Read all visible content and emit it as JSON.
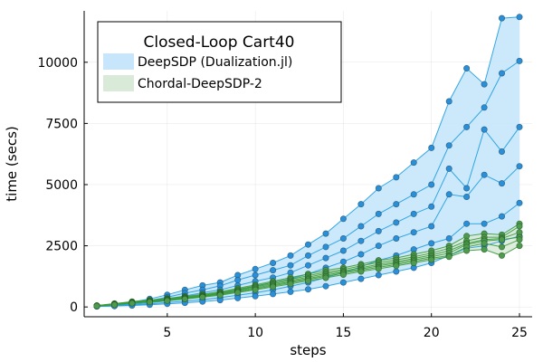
{
  "chart_data": {
    "type": "line",
    "title": "",
    "xlabel": "steps",
    "ylabel": "time (secs)",
    "xlim": [
      0.28,
      25.72
    ],
    "ylim": [
      -400,
      12100
    ],
    "xticks": [
      5,
      10,
      15,
      20,
      25
    ],
    "yticks": [
      0,
      2500,
      5000,
      7500,
      10000
    ],
    "ytick_labels": [
      "0",
      "2500",
      "5000",
      "7500",
      "10000"
    ],
    "grid": true,
    "legend": {
      "title": "Closed-Loop Cart40",
      "position": "top-left",
      "entries": [
        "DeepSDP (Dualization.jl)",
        "Chordal-DeepSDP-2"
      ]
    },
    "colors": {
      "deepsdp_line": "#1f9ee0",
      "deepsdp_fill": "#c7e6fb",
      "deepsdp_marker": "#2a8fd6",
      "chordal_line": "#3a9a3a",
      "chordal_fill": "#d9ead9",
      "chordal_marker": "#4f9a4f"
    },
    "x": [
      1,
      2,
      3,
      4,
      5,
      6,
      7,
      8,
      9,
      10,
      11,
      12,
      13,
      14,
      15,
      16,
      17,
      18,
      19,
      20,
      21,
      22,
      23,
      24,
      25
    ],
    "series_groups": [
      {
        "name": "DeepSDP (Dualization.jl)",
        "band": true,
        "series": [
          {
            "values": [
              50,
              120,
              200,
              330,
              500,
              700,
              880,
              1000,
              1300,
              1550,
              1800,
              2100,
              2550,
              3000,
              3600,
              4200,
              4850,
              5300,
              5900,
              6500,
              8400,
              9750,
              9100,
              11800,
              11850
            ]
          },
          {
            "values": [
              45,
              100,
              170,
              260,
              400,
              560,
              700,
              860,
              1100,
              1300,
              1500,
              1700,
              2100,
              2450,
              2800,
              3300,
              3800,
              4200,
              4600,
              5000,
              6600,
              7350,
              8150,
              9550,
              10050
            ]
          },
          {
            "values": [
              40,
              80,
              140,
              220,
              330,
              450,
              580,
              700,
              880,
              1050,
              1200,
              1400,
              1700,
              2000,
              2300,
              2700,
              3100,
              3450,
              3800,
              4100,
              5650,
              4850,
              7250,
              6350,
              7350
            ]
          },
          {
            "values": [
              35,
              60,
              110,
              170,
              250,
              350,
              450,
              550,
              700,
              850,
              1000,
              1150,
              1350,
              1600,
              1850,
              2150,
              2500,
              2800,
              3050,
              3300,
              4600,
              4500,
              5400,
              5050,
              5750
            ]
          },
          {
            "values": [
              25,
              45,
              80,
              120,
              180,
              240,
              300,
              380,
              480,
              580,
              700,
              850,
              1000,
              1200,
              1400,
              1650,
              1900,
              2100,
              2350,
              2600,
              2800,
              3400,
              3400,
              3700,
              4250
            ]
          },
          {
            "values": [
              20,
              35,
              60,
              90,
              130,
              170,
              220,
              280,
              360,
              440,
              530,
              620,
              720,
              850,
              1000,
              1150,
              1300,
              1450,
              1600,
              1800,
              2100,
              2400,
              2500,
              2700,
              2900
            ]
          }
        ]
      },
      {
        "name": "Chordal-DeepSDP-2",
        "band": true,
        "series": [
          {
            "values": [
              60,
              140,
              220,
              280,
              350,
              430,
              520,
              620,
              760,
              900,
              1050,
              1200,
              1350,
              1500,
              1600,
              1750,
              1900,
              2000,
              2150,
              2300,
              2500,
              2900,
              3000,
              2950,
              3400
            ]
          },
          {
            "values": [
              55,
              130,
              200,
              260,
              330,
              400,
              490,
              590,
              720,
              860,
              1000,
              1130,
              1280,
              1420,
              1530,
              1680,
              1820,
              1920,
              2050,
              2200,
              2400,
              2700,
              2850,
              2850,
              3300
            ]
          },
          {
            "values": [
              50,
              120,
              185,
              240,
              310,
              380,
              460,
              560,
              680,
              820,
              950,
              1080,
              1220,
              1360,
              1470,
              1600,
              1740,
              1850,
              1980,
              2120,
              2300,
              2600,
              2750,
              2800,
              3050
            ]
          },
          {
            "values": [
              45,
              110,
              170,
              225,
              290,
              360,
              440,
              530,
              650,
              780,
              900,
              1030,
              1160,
              1300,
              1420,
              1550,
              1680,
              1790,
              1920,
              2050,
              2200,
              2550,
              2700,
              2750,
              2850
            ]
          },
          {
            "values": [
              40,
              100,
              160,
              210,
              270,
              340,
              420,
              510,
              620,
              740,
              860,
              990,
              1120,
              1250,
              1380,
              1500,
              1620,
              1730,
              1860,
              1990,
              2100,
              2450,
              2600,
              2450,
              2750
            ]
          },
          {
            "values": [
              35,
              90,
              150,
              200,
              255,
              320,
              400,
              480,
              590,
              700,
              820,
              940,
              1070,
              1190,
              1320,
              1450,
              1560,
              1680,
              1800,
              1930,
              2050,
              2300,
              2350,
              2100,
              2500
            ]
          }
        ]
      }
    ]
  }
}
